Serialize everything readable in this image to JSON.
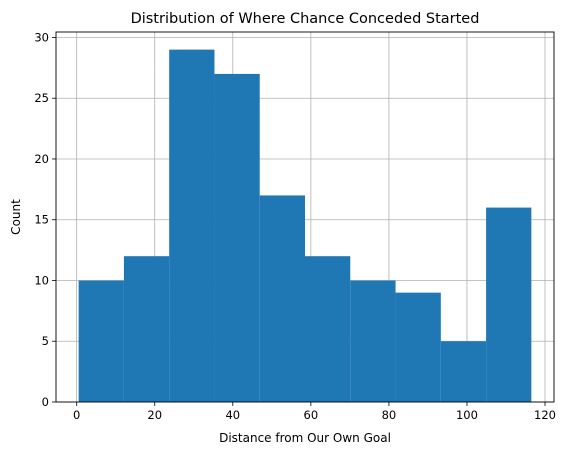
{
  "chart_data": {
    "type": "bar",
    "title": "Distribution of Where Chance Conceded Started",
    "xlabel": "Distance from Our Own Goal",
    "ylabel": "Count",
    "bins": [
      {
        "x0": 0.5,
        "x1": 12.1,
        "count": 10
      },
      {
        "x0": 12.1,
        "x1": 23.7,
        "count": 12
      },
      {
        "x0": 23.7,
        "x1": 35.3,
        "count": 29
      },
      {
        "x0": 35.3,
        "x1": 46.9,
        "count": 27
      },
      {
        "x0": 46.9,
        "x1": 58.5,
        "count": 17
      },
      {
        "x0": 58.5,
        "x1": 70.1,
        "count": 12
      },
      {
        "x0": 70.1,
        "x1": 81.7,
        "count": 10
      },
      {
        "x0": 81.7,
        "x1": 93.3,
        "count": 9
      },
      {
        "x0": 93.3,
        "x1": 104.9,
        "count": 5
      },
      {
        "x0": 104.9,
        "x1": 116.5,
        "count": 16
      }
    ],
    "xlim": [
      -5.3,
      122.3
    ],
    "ylim": [
      0,
      30.45
    ],
    "xticks": [
      0,
      20,
      40,
      60,
      80,
      100,
      120
    ],
    "yticks": [
      0,
      5,
      10,
      15,
      20,
      25,
      30
    ],
    "grid": true,
    "bar_color": "#1f77b4",
    "grid_color": "#b0b0b0"
  }
}
